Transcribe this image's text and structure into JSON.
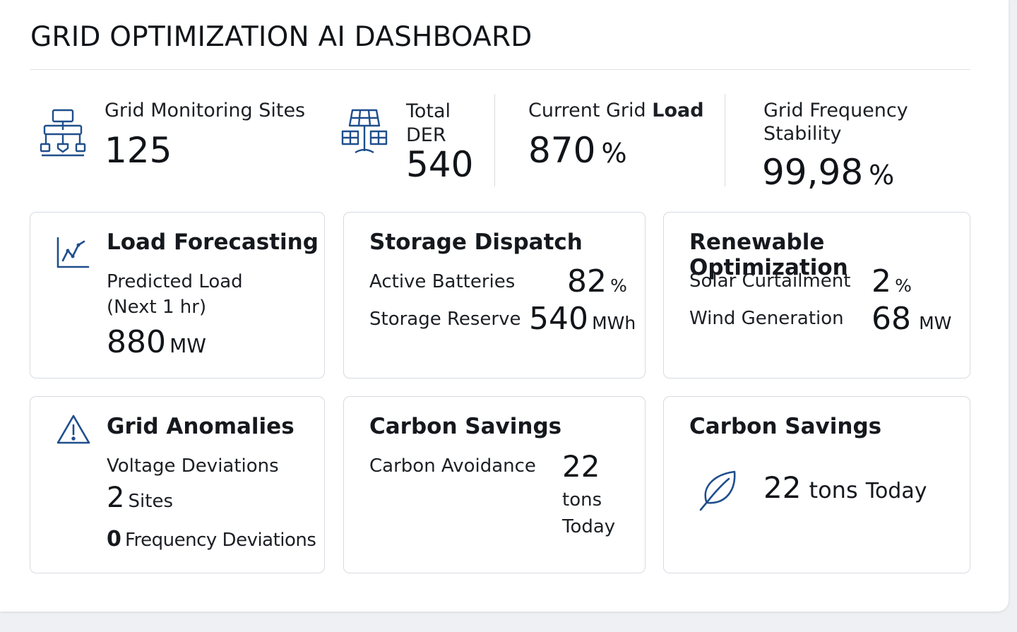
{
  "title": "GRID OPTIMIZATION AI DASHBOARD",
  "stats": {
    "sites": {
      "label": "Grid Monitoring Sites",
      "value": "125",
      "icon": "hierarchy-icon"
    },
    "der": {
      "label_line1": "Total",
      "label_line2": "DER",
      "value": "540",
      "icon": "solar-panel-icon"
    },
    "load": {
      "label_prefix": "Current Grid ",
      "label_bold": "Load",
      "value": "870",
      "unit": "%"
    },
    "frequency": {
      "label_line1": "Grid Frequency",
      "label_line2": "Stability",
      "value": "99,98",
      "unit": "%"
    }
  },
  "cards": {
    "load_forecasting": {
      "title": "Load Forecasting",
      "line1": "Predicted Load",
      "line2": "(Next 1 hr)",
      "value": "880",
      "unit": "MW",
      "icon": "line-chart-icon"
    },
    "storage_dispatch": {
      "title": "Storage Dispatch",
      "row1_label": "Active Batteries",
      "row1_value": "82",
      "row1_unit": "%",
      "row2_label": "Storage Reserve",
      "row2_value": "540",
      "row2_unit": "MWh"
    },
    "renewable": {
      "title": "Renewable Optimization",
      "row1_label": "Solar Curtailment",
      "row1_value": "2",
      "row1_unit": "%",
      "row2_label": "Wind Generation",
      "row2_value": "68",
      "row2_unit": "MW"
    },
    "anomalies": {
      "title": "Grid Anomalies",
      "voltage_label": "Voltage Deviations",
      "voltage_value": "2",
      "voltage_unit": "Sites",
      "frequency_value": "0",
      "frequency_label": "Frequency Deviations",
      "icon": "warning-icon"
    },
    "carbon1": {
      "title": "Carbon Savings",
      "label": "Carbon Avoidance",
      "value": "22",
      "unit": "tons",
      "period": "Today"
    },
    "carbon2": {
      "title": "Carbon Savings",
      "value": "22",
      "unit": "tons",
      "period": "Today",
      "icon": "leaf-icon"
    }
  },
  "colors": {
    "accent": "#1f4e8c",
    "border": "#d6dbe2",
    "text": "#15181d"
  }
}
